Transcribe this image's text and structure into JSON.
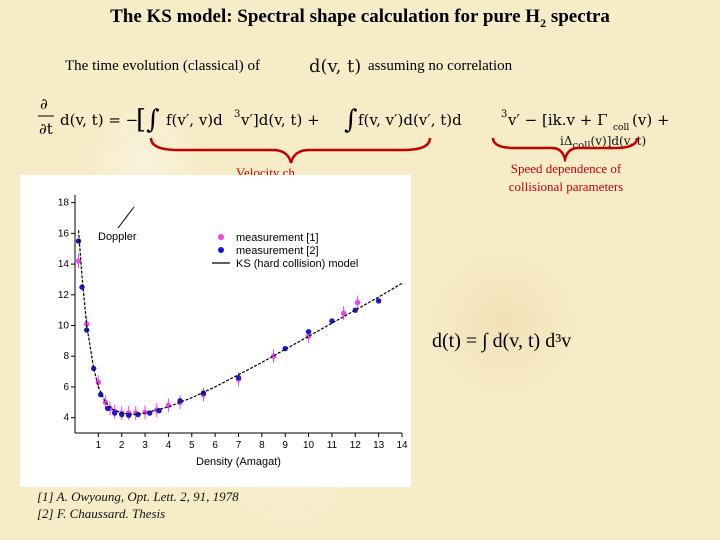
{
  "title": {
    "text": "The KS model: Spectral shape calculation for pure H",
    "subscript": "2",
    "suffix": " spectra"
  },
  "subtitle": {
    "left": "The time evolution (classical) of",
    "right": "assuming no correlation"
  },
  "equations": {
    "d_symbol": "d(v, t)",
    "main_eq": "∂/∂t d(v, t) = −[∫ f(v′, v)d³v′] d(v, t) + ∫ f(v, v′) d(v′, t) d³v′ − [ik·v + Γcoll(v) + iΔcoll(v)] d(v, t)",
    "integral_eq": "d(t) = ∫ d(v, t) d³v"
  },
  "annotations": {
    "velocity_partial": "Velocity ch",
    "speed_dependence": "Speed dependence of collisional parameters"
  },
  "references": [
    "[1] A. Owyoung, Opt. Lett. 2, 91, 1978",
    "[2] F. Chaussard. Thesis"
  ],
  "colors": {
    "accent": "#c40000",
    "magenta": "#ee44ee",
    "blue": "#1a1acc"
  },
  "chart_data": {
    "type": "scatter",
    "xlabel": "Density (Amagat)",
    "ylabel": "",
    "xlim": [
      0,
      14
    ],
    "ylim": [
      3,
      18.5
    ],
    "x_ticks": [
      1,
      2,
      3,
      4,
      5,
      6,
      7,
      8,
      9,
      10,
      11,
      12,
      13,
      14
    ],
    "y_ticks": [
      4,
      6,
      8,
      10,
      12,
      14,
      16,
      18
    ],
    "annotation": "Doppler",
    "legend_position": "upper-right",
    "series": [
      {
        "name": "measurement [1]",
        "kind": "points",
        "color": "#ee44ee",
        "x": [
          0.15,
          0.5,
          1.0,
          1.3,
          1.5,
          1.7,
          2.0,
          2.3,
          2.6,
          3.0,
          3.5,
          4.0,
          4.5,
          5.5,
          7.0,
          8.5,
          10.0,
          11.5,
          12.1
        ],
        "y": [
          14.2,
          10.1,
          6.3,
          5.0,
          4.6,
          4.4,
          4.3,
          4.3,
          4.3,
          4.35,
          4.5,
          4.8,
          5.0,
          5.5,
          6.5,
          8.0,
          9.3,
          10.8,
          11.5
        ]
      },
      {
        "name": "measurement [2]",
        "kind": "points",
        "color": "#1a1acc",
        "x": [
          0.15,
          0.3,
          0.5,
          0.8,
          1.1,
          1.4,
          1.7,
          2.0,
          2.3,
          2.7,
          3.2,
          3.6,
          4.5,
          5.5,
          7.0,
          9.0,
          10.0,
          11.0,
          12.0,
          13.0
        ],
        "y": [
          15.5,
          12.5,
          9.7,
          7.2,
          5.5,
          4.6,
          4.3,
          4.2,
          4.15,
          4.2,
          4.3,
          4.45,
          5.1,
          5.6,
          6.6,
          8.5,
          9.6,
          10.3,
          11.0,
          11.6
        ]
      },
      {
        "name": "KS (hard collision) model",
        "kind": "line",
        "color": "#000000",
        "x": [
          0.15,
          0.3,
          0.5,
          0.8,
          1.0,
          1.3,
          1.6,
          2.0,
          2.5,
          3.0,
          4.0,
          5.0,
          6.0,
          7.0,
          8.0,
          9.0,
          10.0,
          11.0,
          12.0,
          13.0,
          14.0
        ],
        "y": [
          16.2,
          13.2,
          10.0,
          7.2,
          6.0,
          5.0,
          4.55,
          4.3,
          4.2,
          4.3,
          4.7,
          5.3,
          6.0,
          6.8,
          7.6,
          8.45,
          9.3,
          10.15,
          11.0,
          11.85,
          12.75
        ]
      }
    ]
  }
}
